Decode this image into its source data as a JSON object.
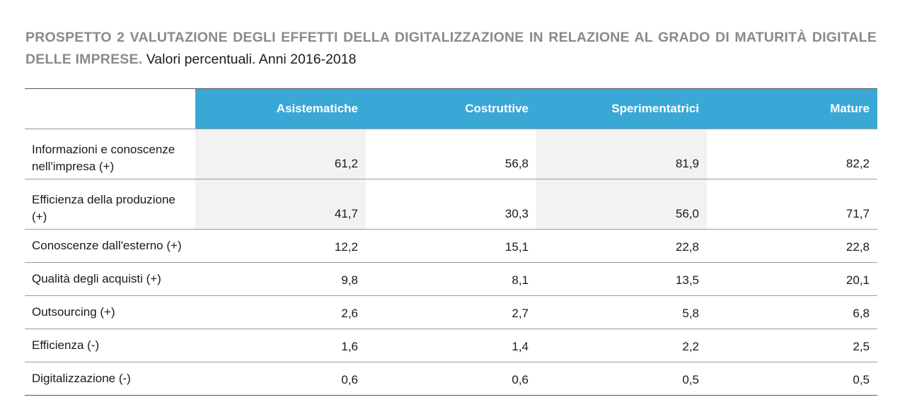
{
  "title": {
    "main": "PROSPETTO 2 VALUTAZIONE DEGLI EFFETTI DELLA DIGITALIZZAZIONE IN RELAZIONE AL GRADO DI MATURITÀ DIGITALE DELLE IMPRESE.",
    "sub": " Valori percentuali. Anni 2016-2018"
  },
  "table": {
    "columns": [
      "Asistematiche",
      "Costruttive",
      "Sperimentatrici",
      "Mature"
    ],
    "rows": [
      {
        "label": "Informazioni e conoscenze nell'impresa (+)",
        "values": [
          "61,2",
          "56,8",
          "81,9",
          "82,2"
        ]
      },
      {
        "label": "Efficienza della produzione (+)",
        "values": [
          "41,7",
          "30,3",
          "56,0",
          "71,7"
        ]
      },
      {
        "label": "Conoscenze dall'esterno (+)",
        "values": [
          "12,2",
          "15,1",
          "22,8",
          "22,8"
        ]
      },
      {
        "label": "Qualità degli acquisti (+)",
        "values": [
          "9,8",
          "8,1",
          "13,5",
          "20,1"
        ]
      },
      {
        "label": "Outsourcing (+)",
        "values": [
          "2,6",
          "2,7",
          "5,8",
          "6,8"
        ]
      },
      {
        "label": "Efficienza (-)",
        "values": [
          "1,6",
          "1,4",
          "2,2",
          "2,5"
        ]
      },
      {
        "label": "Digitalizzazione (-)",
        "values": [
          "0,6",
          "0,6",
          "0,5",
          "0,5"
        ]
      }
    ]
  },
  "colors": {
    "header_bg": "#3aa8d7",
    "title_gray": "#8a8a8a",
    "shade": "#f2f2f2"
  }
}
